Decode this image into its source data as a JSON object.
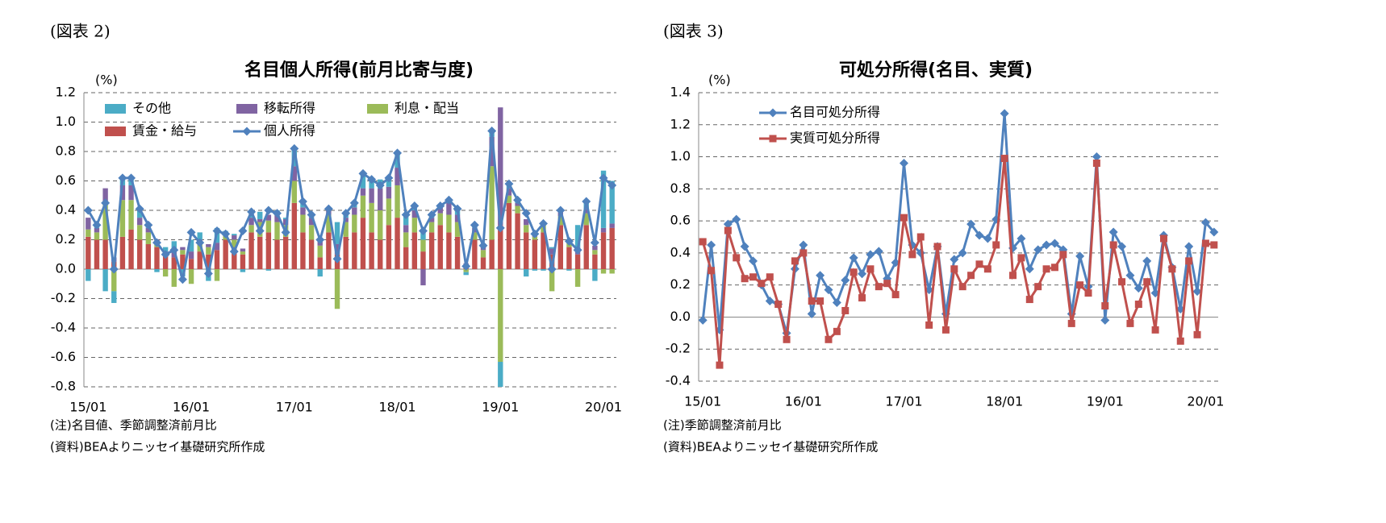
{
  "chart_data": [
    {
      "type": "bar",
      "stacked": true,
      "figure_label": "(図表 2)",
      "title": "名目個人所得(前月比寄与度)",
      "y_unit": "(%)",
      "notes": [
        "(注)名目値、季節調整済前月比",
        "(資料)BEAよりニッセイ基礎研究所作成"
      ],
      "categories": [
        "15/01",
        null,
        null,
        null,
        null,
        null,
        null,
        null,
        null,
        null,
        null,
        null,
        "16/01",
        null,
        null,
        null,
        null,
        null,
        null,
        null,
        null,
        null,
        null,
        null,
        "17/01",
        null,
        null,
        null,
        null,
        null,
        null,
        null,
        null,
        null,
        null,
        null,
        "18/01",
        null,
        null,
        null,
        null,
        null,
        null,
        null,
        null,
        null,
        null,
        null,
        "19/01",
        null,
        null,
        null,
        null,
        null,
        null,
        null,
        null,
        null,
        null,
        null,
        "20/01",
        null
      ],
      "ylim": [
        -0.8,
        1.2
      ],
      "yticks": [
        -0.8,
        -0.6,
        -0.4,
        -0.2,
        {
          "value": 0,
          "label": "0.0"
        },
        0.2,
        0.4,
        0.6,
        0.8,
        {
          "value": 1,
          "label": "1.0"
        },
        1.2
      ],
      "grid": true,
      "series": [
        {
          "name": "その他",
          "type": "bar",
          "color": "#4bacc6",
          "values": [
            -0.08,
            0.02,
            -0.15,
            -0.08,
            0.05,
            0.05,
            0.06,
            0.02,
            -0.02,
            0.03,
            0.06,
            -0.05,
            0.08,
            0.05,
            -0.08,
            0.1,
            0.01,
            0.01,
            -0.02,
            0.04,
            0.05,
            -0.01,
            0.03,
            0.01,
            0.12,
            0.04,
            0.02,
            -0.05,
            0.01,
            0.15,
            0.03,
            0.03,
            0.1,
            0.06,
            0.06,
            0.06,
            0.1,
            0.07,
            0.03,
            0.06,
            0.02,
            0.0,
            0.02,
            0.04,
            -0.02,
            0.02,
            0.01,
            0.04,
            -0.17,
            0.03,
            0.02,
            -0.05,
            -0.01,
            -0.01,
            0.01,
            0.01,
            -0.01,
            0.15,
            0.05,
            -0.08,
            0.39,
            0.29
          ]
        },
        {
          "name": "移転所得",
          "type": "bar",
          "color": "#8064a2",
          "values": [
            0.08,
            0.03,
            0.1,
            0.03,
            0.1,
            0.1,
            0.05,
            0.03,
            0.02,
            0.02,
            0.05,
            0.02,
            0.05,
            0.03,
            0.02,
            0.05,
            0.02,
            0.03,
            0.02,
            0.05,
            0.02,
            0.04,
            0.05,
            0.04,
            0.1,
            0.05,
            0.05,
            0.05,
            0.03,
            0.07,
            0.03,
            0.05,
            0.05,
            0.1,
            0.15,
            0.08,
            0.12,
            0.05,
            0.05,
            -0.11,
            0.03,
            0.05,
            0.08,
            0.05,
            0.02,
            0.03,
            0.02,
            0.2,
            0.8,
            0.05,
            0.02,
            0.04,
            0.03,
            0.02,
            0.04,
            0.03,
            0.02,
            0.05,
            0.03,
            0.03,
            0.03,
            0.03
          ]
        },
        {
          "name": "利息・配当",
          "type": "bar",
          "color": "#9bbb59",
          "values": [
            0.05,
            0.05,
            0.25,
            -0.15,
            0.25,
            0.2,
            0.1,
            0.08,
            0.03,
            -0.05,
            -0.12,
            0.03,
            -0.1,
            0.05,
            0.05,
            -0.08,
            0.03,
            0.05,
            0.02,
            0.05,
            0.1,
            0.08,
            0.12,
            0.08,
            0.15,
            0.12,
            0.1,
            0.08,
            0.12,
            -0.27,
            0.1,
            0.12,
            0.15,
            0.2,
            0.2,
            0.18,
            0.22,
            0.1,
            0.1,
            0.08,
            0.07,
            0.08,
            0.12,
            0.1,
            -0.02,
            0.05,
            0.05,
            0.5,
            -0.63,
            0.05,
            0.05,
            0.05,
            0.02,
            0.05,
            -0.15,
            0.06,
            0.03,
            -0.12,
            0.08,
            0.03,
            -0.03,
            -0.03
          ]
        },
        {
          "name": "賃金・給与",
          "type": "bar",
          "color": "#c0504d",
          "values": [
            0.22,
            0.2,
            0.2,
            0.05,
            0.22,
            0.27,
            0.2,
            0.17,
            0.15,
            0.1,
            0.08,
            0.1,
            0.07,
            0.12,
            0.1,
            0.13,
            0.2,
            0.15,
            0.1,
            0.25,
            0.22,
            0.25,
            0.2,
            0.22,
            0.45,
            0.25,
            0.2,
            0.08,
            0.25,
            0.1,
            0.22,
            0.25,
            0.35,
            0.25,
            0.2,
            0.3,
            0.35,
            0.15,
            0.25,
            0.12,
            0.25,
            0.3,
            0.25,
            0.22,
            0.02,
            0.2,
            0.08,
            0.2,
            0.3,
            0.45,
            0.38,
            0.25,
            0.2,
            0.25,
            0.1,
            0.3,
            0.15,
            0.1,
            0.3,
            0.1,
            0.25,
            0.28
          ]
        },
        {
          "name": "個人所得",
          "type": "line",
          "marker": "diamond",
          "color": "#4f81bd",
          "values": [
            0.4,
            0.3,
            0.45,
            0.0,
            0.62,
            0.62,
            0.41,
            0.3,
            0.18,
            0.1,
            0.13,
            -0.07,
            0.25,
            0.18,
            -0.03,
            0.26,
            0.24,
            0.12,
            0.26,
            0.39,
            0.26,
            0.4,
            0.38,
            0.25,
            0.82,
            0.46,
            0.37,
            0.2,
            0.41,
            0.07,
            0.38,
            0.45,
            0.65,
            0.61,
            0.57,
            0.62,
            0.79,
            0.37,
            0.43,
            0.26,
            0.37,
            0.43,
            0.47,
            0.41,
            0.02,
            0.3,
            0.16,
            0.94,
            0.28,
            0.58,
            0.47,
            0.38,
            0.24,
            0.31,
            0.0,
            0.4,
            0.19,
            0.13,
            0.46,
            0.18,
            0.62,
            0.57
          ]
        }
      ]
    },
    {
      "type": "line",
      "figure_label": "(図表 3)",
      "title": "可処分所得(名目、実質)",
      "y_unit": "(%)",
      "notes": [
        "(注)季節調整済前月比",
        "(資料)BEAよりニッセイ基礎研究所作成"
      ],
      "categories": [
        "15/01",
        null,
        null,
        null,
        null,
        null,
        null,
        null,
        null,
        null,
        null,
        null,
        "16/01",
        null,
        null,
        null,
        null,
        null,
        null,
        null,
        null,
        null,
        null,
        null,
        "17/01",
        null,
        null,
        null,
        null,
        null,
        null,
        null,
        null,
        null,
        null,
        null,
        "18/01",
        null,
        null,
        null,
        null,
        null,
        null,
        null,
        null,
        null,
        null,
        null,
        "19/01",
        null,
        null,
        null,
        null,
        null,
        null,
        null,
        null,
        null,
        null,
        null,
        "20/01",
        null
      ],
      "ylim": [
        -0.4,
        1.4
      ],
      "yticks": [
        -0.4,
        -0.2,
        {
          "value": 0,
          "label": "0.0"
        },
        0.2,
        0.4,
        0.6,
        0.8,
        {
          "value": 1,
          "label": "1.0"
        },
        1.2,
        1.4
      ],
      "grid": true,
      "series": [
        {
          "name": "名目可処分所得",
          "type": "line",
          "marker": "diamond",
          "color": "#4f81bd",
          "values": [
            -0.02,
            0.45,
            -0.08,
            0.58,
            0.61,
            0.44,
            0.35,
            0.2,
            0.1,
            0.08,
            -0.1,
            0.3,
            0.45,
            0.02,
            0.26,
            0.17,
            0.09,
            0.23,
            0.37,
            0.27,
            0.39,
            0.41,
            0.24,
            0.34,
            0.96,
            0.45,
            0.4,
            0.17,
            0.44,
            0.02,
            0.36,
            0.4,
            0.58,
            0.51,
            0.49,
            0.61,
            1.27,
            0.43,
            0.49,
            0.3,
            0.42,
            0.45,
            0.46,
            0.42,
            0.02,
            0.38,
            0.19,
            1.0,
            -0.02,
            0.53,
            0.44,
            0.26,
            0.18,
            0.35,
            0.15,
            0.51,
            0.31,
            0.05,
            0.44,
            0.16,
            0.59,
            0.53
          ]
        },
        {
          "name": "実質可処分所得",
          "type": "line",
          "marker": "square",
          "color": "#c0504d",
          "values": [
            0.47,
            0.29,
            -0.3,
            0.54,
            0.37,
            0.24,
            0.25,
            0.21,
            0.25,
            0.08,
            -0.14,
            0.35,
            0.4,
            0.1,
            0.1,
            -0.14,
            -0.09,
            0.04,
            0.28,
            0.12,
            0.3,
            0.19,
            0.21,
            0.14,
            0.62,
            0.39,
            0.5,
            -0.05,
            0.44,
            -0.08,
            0.3,
            0.19,
            0.26,
            0.33,
            0.3,
            0.45,
            0.99,
            0.26,
            0.37,
            0.11,
            0.19,
            0.3,
            0.31,
            0.39,
            -0.04,
            0.2,
            0.15,
            0.96,
            0.07,
            0.45,
            0.22,
            -0.04,
            0.08,
            0.22,
            -0.08,
            0.49,
            0.3,
            -0.15,
            0.35,
            -0.11,
            0.46,
            0.45
          ]
        }
      ]
    }
  ]
}
